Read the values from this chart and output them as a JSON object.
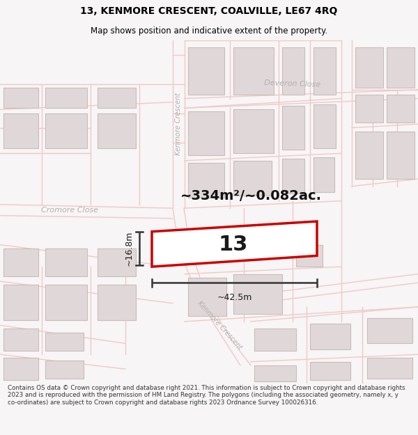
{
  "title_line1": "13, KENMORE CRESCENT, COALVILLE, LE67 4RQ",
  "title_line2": "Map shows position and indicative extent of the property.",
  "footer_text": "Contains OS data © Crown copyright and database right 2021. This information is subject to Crown copyright and database rights 2023 and is reproduced with the permission of HM Land Registry. The polygons (including the associated geometry, namely x, y co-ordinates) are subject to Crown copyright and database rights 2023 Ordnance Survey 100026316.",
  "area_label": "~334m²/~0.082ac.",
  "property_number": "13",
  "dim_width": "~42.5m",
  "dim_height": "~16.8m",
  "bg_color": "#f7f5f5",
  "map_bg": "#ffffff",
  "road_color": "#f0c8c8",
  "building_fill": "#e0d8d8",
  "building_edge": "#ccbbbb",
  "highlight_color": "#cc0000",
  "road_label_color": "#aaaaaa",
  "dim_color": "#222222",
  "title_color": "#000000"
}
